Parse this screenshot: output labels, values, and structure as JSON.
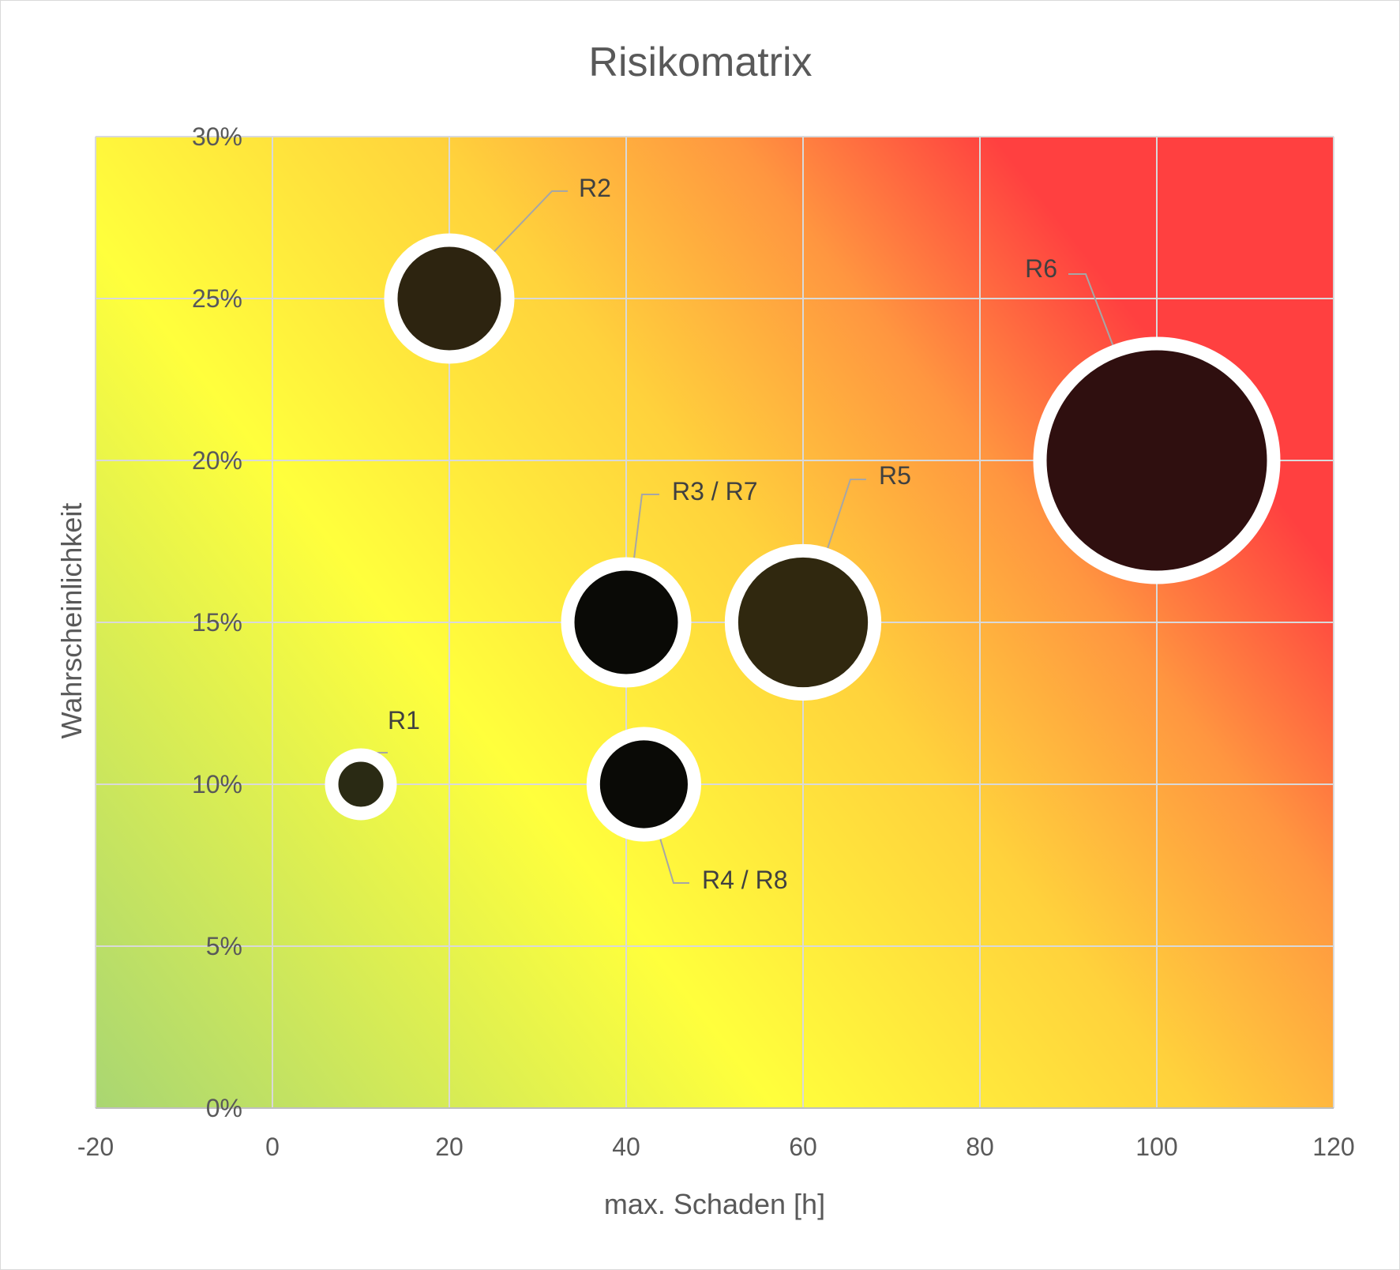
{
  "chart_data": {
    "type": "scatter",
    "variant": "bubble",
    "title": "Risikomatrix",
    "xlabel": "max. Schaden [h]",
    "ylabel": "Wahrscheinlichkeit",
    "xlim": [
      -20,
      120
    ],
    "ylim": [
      0,
      0.3
    ],
    "x_ticks": [
      -20,
      0,
      20,
      40,
      60,
      80,
      100,
      120
    ],
    "x_tick_labels": [
      "-20",
      "0",
      "20",
      "40",
      "60",
      "80",
      "100",
      "120"
    ],
    "y_ticks": [
      0,
      0.05,
      0.1,
      0.15,
      0.2,
      0.25,
      0.3
    ],
    "y_tick_labels": [
      "0%",
      "5%",
      "10%",
      "15%",
      "20%",
      "25%",
      "30%"
    ],
    "grid": true,
    "legend": "none",
    "background": "heat gradient green-yellow-orange-red",
    "colors": {
      "gradient_green": "#a9d672",
      "gradient_yellow": "#ffff3c",
      "gradient_orange": "#ffa040",
      "gradient_red": "#ff4040",
      "grid": "#d9d9d9",
      "bubble_outline": "#ffffff",
      "leader_line": "#a6a6a6"
    },
    "points": [
      {
        "label": "R1",
        "x": 10,
        "y": 0.1,
        "size": 1,
        "color": "#2a2a14"
      },
      {
        "label": "R2",
        "x": 20,
        "y": 0.25,
        "size": 4,
        "color": "#2d2410"
      },
      {
        "label": "R3 / R7",
        "x": 40,
        "y": 0.15,
        "size": 4,
        "color": "#0a0a06"
      },
      {
        "label": "R4 / R8",
        "x": 42,
        "y": 0.1,
        "size": 3,
        "color": "#0a0a06"
      },
      {
        "label": "R5",
        "x": 60,
        "y": 0.15,
        "size": 6,
        "color": "#30280f"
      },
      {
        "label": "R6",
        "x": 100,
        "y": 0.2,
        "size": 16,
        "color": "#2f0f0f"
      }
    ]
  }
}
